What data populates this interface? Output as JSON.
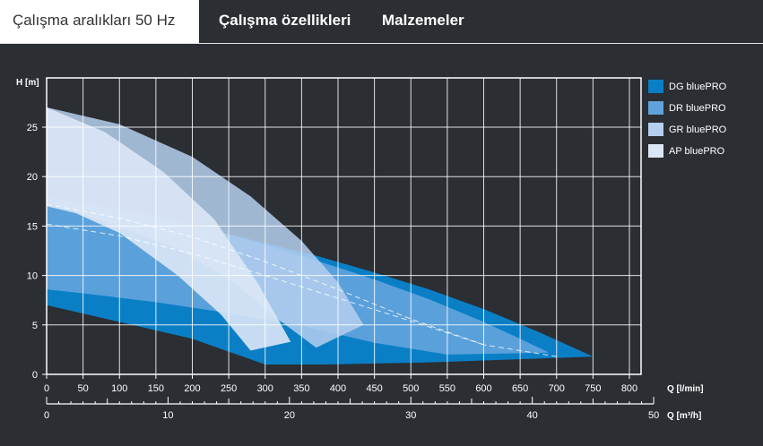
{
  "tabs": [
    {
      "label": "Çalışma aralıkları 50 Hz",
      "active": true
    },
    {
      "label": "Çalışma özellikleri",
      "active": false
    },
    {
      "label": "Malzemeler",
      "active": false
    }
  ],
  "colors": {
    "background": "#2b2e33",
    "grid": "#ffffff",
    "dg": "#0a7fc6",
    "dr": "#5fa2dc",
    "gr": "#b5cfee",
    "ap": "#dce7f6"
  },
  "chart_data": {
    "type": "area",
    "ylabel": "H [m]",
    "xlabel": "Q [l/min]",
    "x2label": "Q [m³/h]",
    "xlim": [
      0,
      820
    ],
    "ylim": [
      0,
      30
    ],
    "x_ticks": [
      0,
      50,
      100,
      150,
      200,
      250,
      300,
      350,
      400,
      450,
      500,
      550,
      600,
      650,
      700,
      750,
      800
    ],
    "y_ticks": [
      0,
      5,
      10,
      15,
      20,
      25
    ],
    "x2_ticks": [
      0,
      10,
      20,
      30,
      40,
      50
    ],
    "grid": true,
    "legend_position": "right",
    "series": [
      {
        "name": "DG bluePRO",
        "color": "#0a7fc6",
        "x": [
          0,
          0,
          75,
          150,
          225,
          300,
          375,
          450,
          525,
          600,
          675,
          750,
          750,
          680,
          600,
          520,
          450,
          380,
          300,
          200,
          100,
          0
        ],
        "y": [
          7,
          17.4,
          16.8,
          15.8,
          14.6,
          13.3,
          11.9,
          10.3,
          8.6,
          6.6,
          4.3,
          1.8,
          1.8,
          1.6,
          1.4,
          1.2,
          1.1,
          1.0,
          1.0,
          3.6,
          5.3,
          7
        ]
      },
      {
        "name": "DR bluePRO",
        "color": "#5fa2dc",
        "x": [
          0,
          0,
          75,
          150,
          225,
          300,
          375,
          450,
          525,
          600,
          650,
          690,
          690,
          550,
          450,
          350,
          250,
          150,
          50,
          0
        ],
        "y": [
          8.6,
          17.9,
          17.1,
          16.0,
          14.7,
          13.1,
          11.4,
          9.6,
          7.6,
          5.3,
          3.6,
          2.2,
          2.2,
          2.0,
          3.2,
          4.9,
          6.2,
          7.3,
          8.2,
          8.6
        ]
      },
      {
        "name": "GR bluePRO",
        "color": "#b5cfee",
        "x": [
          0,
          0,
          100,
          200,
          280,
          350,
          400,
          435,
          370,
          310,
          250,
          170,
          80,
          0
        ],
        "y": [
          17.5,
          27.0,
          25.3,
          22.0,
          18.0,
          13.5,
          9.3,
          5.0,
          2.7,
          6.0,
          9.7,
          13.0,
          15.4,
          17.5
        ]
      },
      {
        "name": "AP bluePRO",
        "color": "#dce7f6",
        "x": [
          0,
          0,
          80,
          160,
          230,
          290,
          335,
          280,
          240,
          180,
          100,
          40,
          0
        ],
        "y": [
          17.0,
          27.0,
          24.5,
          20.5,
          15.7,
          9.2,
          3.3,
          2.4,
          6.0,
          10.0,
          14.3,
          16.3,
          17.0
        ]
      }
    ],
    "reference_curves": [
      {
        "x": [
          0,
          100,
          200,
          300,
          400,
          500,
          600,
          700
        ],
        "y": [
          17.2,
          15.8,
          13.9,
          11.4,
          8.6,
          5.6,
          3.0,
          1.8
        ]
      },
      {
        "x": [
          0,
          100,
          200,
          300,
          400,
          500,
          600
        ],
        "y": [
          15.2,
          14.0,
          12.2,
          10.0,
          7.7,
          5.4,
          3.0
        ]
      }
    ]
  }
}
